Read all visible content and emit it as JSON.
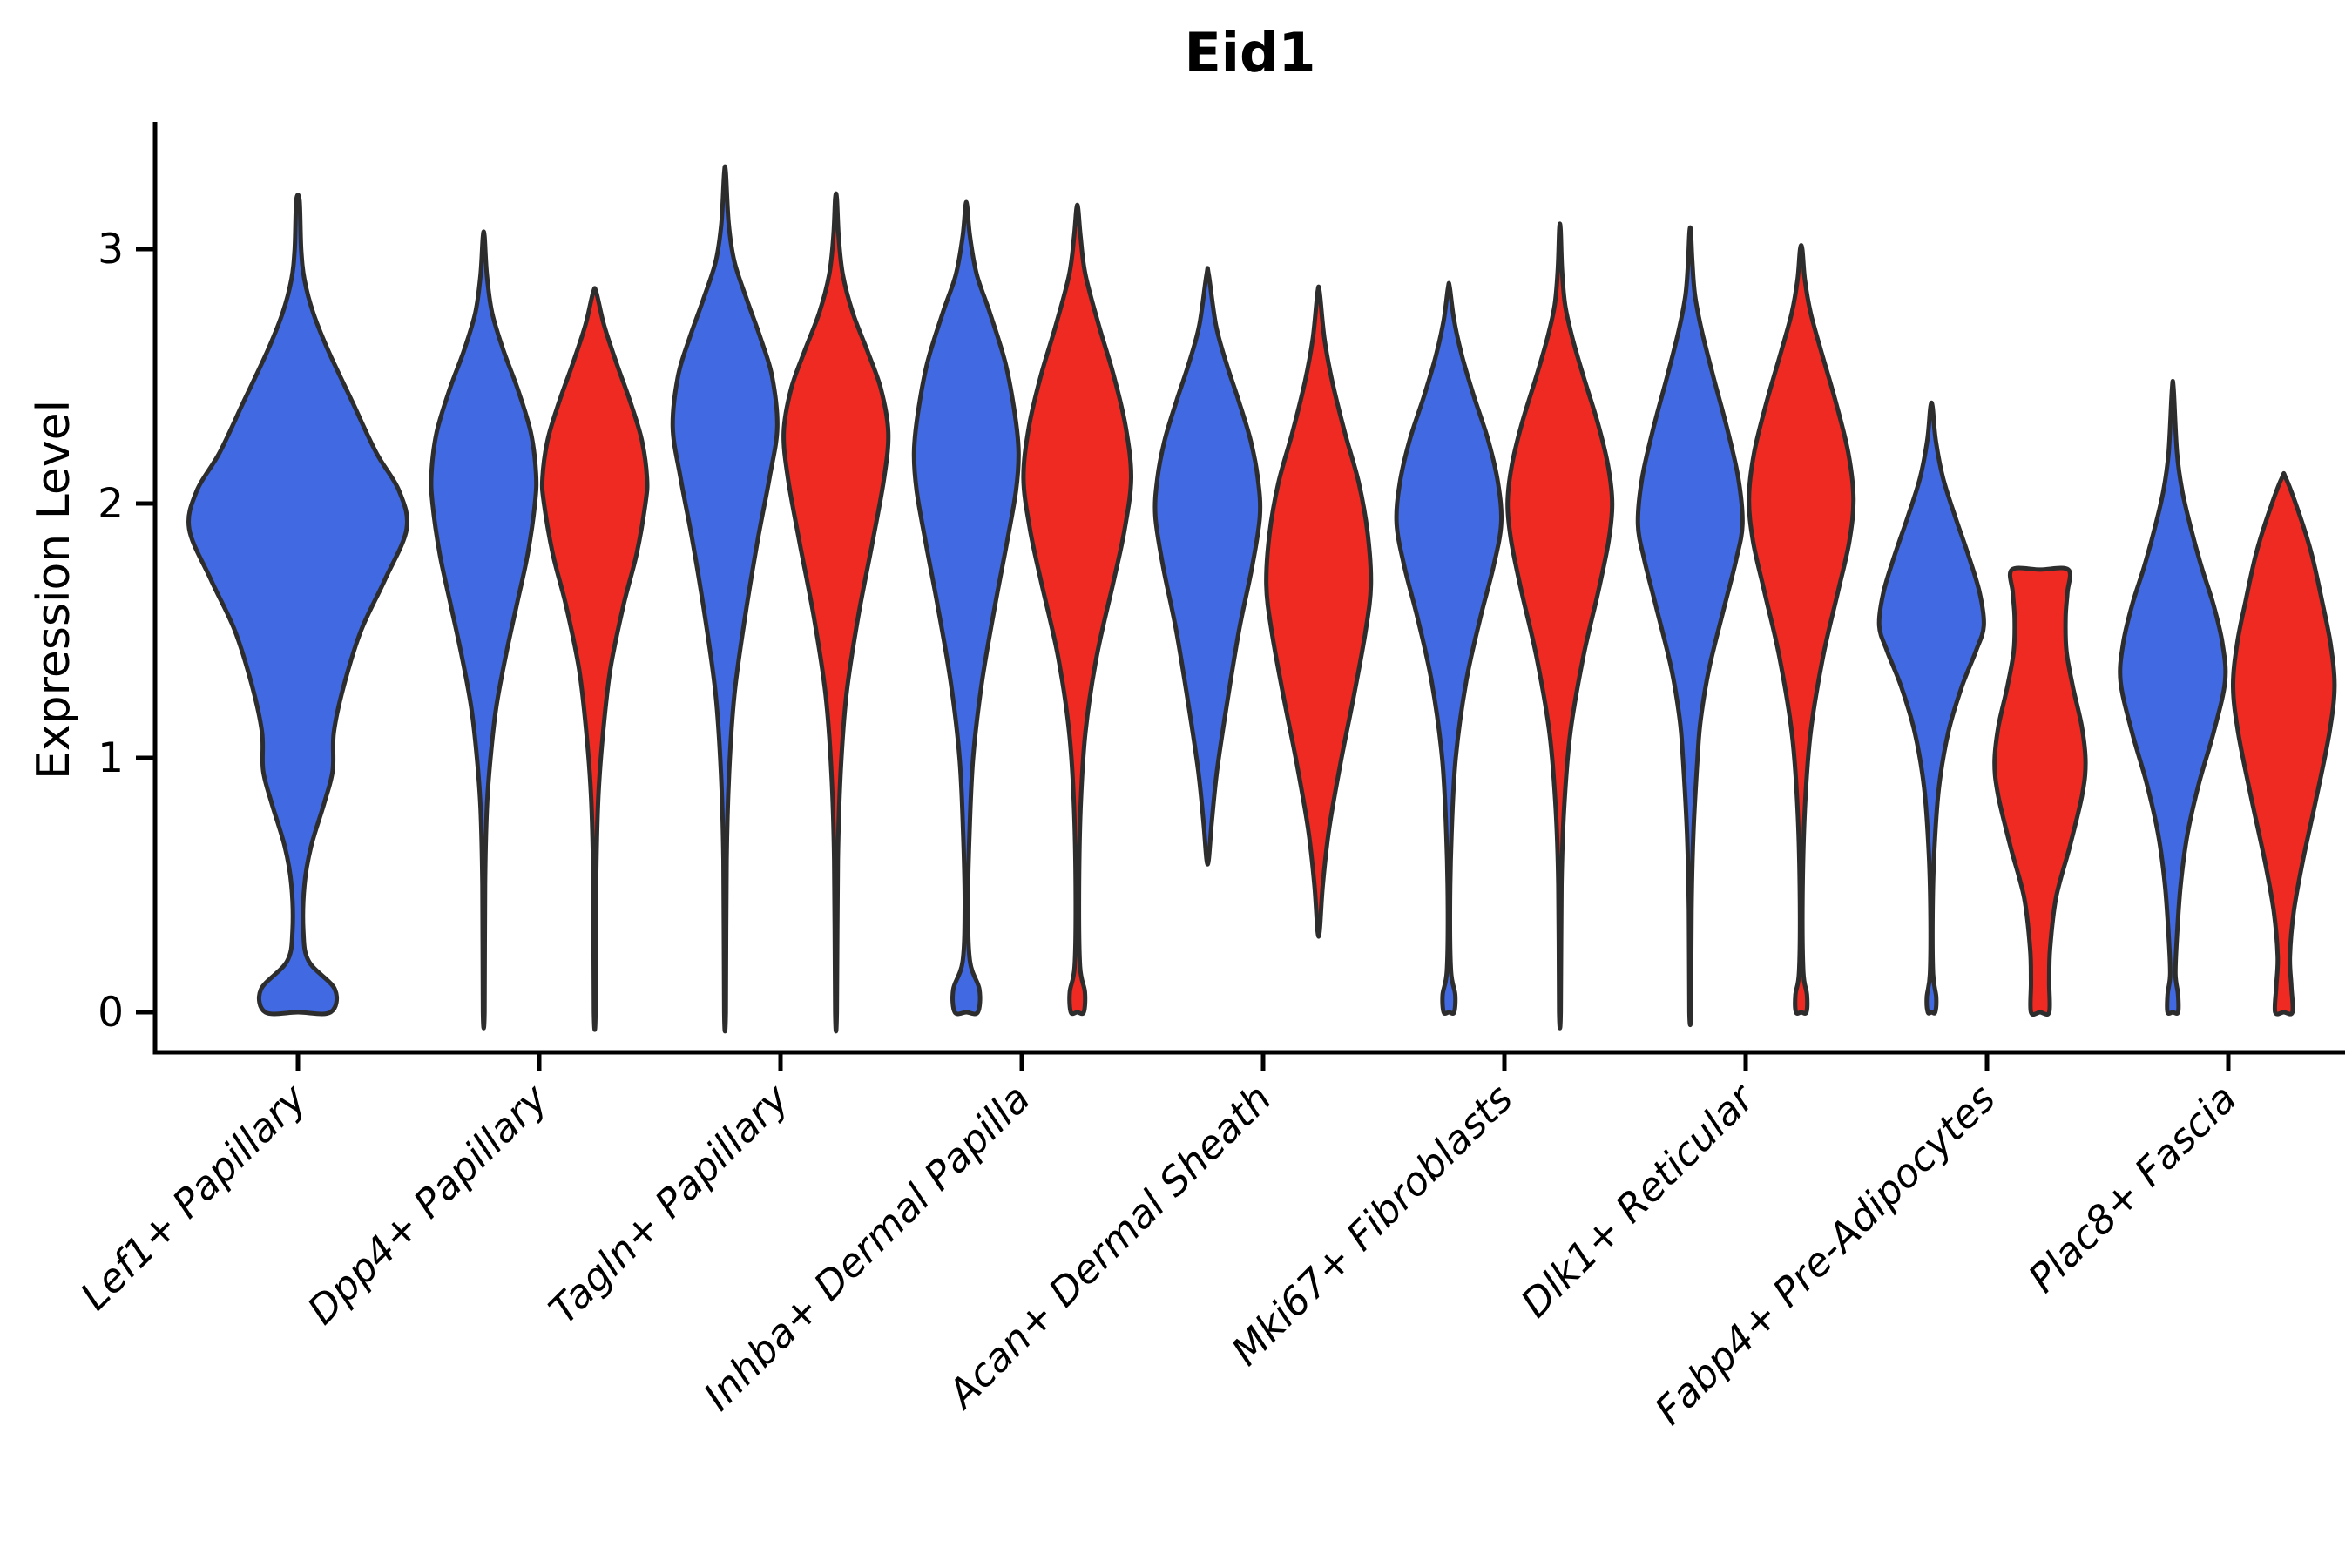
{
  "title": "Eid1",
  "y_axis": {
    "label": "Expression Level",
    "ticks": [
      0,
      1,
      2,
      3
    ],
    "ylim": [
      -0.16,
      3.5
    ]
  },
  "colors": {
    "blue": "#4169E1",
    "red": "#EE2A22",
    "outline": "#2D2D2D",
    "background": "#ffffff"
  },
  "chart_data": {
    "type": "violin",
    "title": "Eid1",
    "ylabel": "Expression Level",
    "yticks": [
      0,
      1,
      2,
      3
    ],
    "ylim": [
      -0.16,
      3.5
    ],
    "grid": false,
    "legend": "none",
    "categories": [
      "Lef1+ Papillary",
      "Dpp4+ Papillary",
      "Tagln+ Papillary",
      "Inhba+ Dermal Papilla",
      "Acan+ Dermal Sheath",
      "Mki67+ Fibroblasts",
      "Dlk1+ Reticular",
      "Fabp4+ Pre-Adipocytes",
      "Plac8+ Fascia"
    ],
    "groups": [
      {
        "name": "blue",
        "color": "#4169E1"
      },
      {
        "name": "red",
        "color": "#EE2A22"
      }
    ],
    "violins": [
      {
        "category_index": 0,
        "group": "blue",
        "offset": 0,
        "width_scale": 2.08,
        "profile": [
          [
            0,
            0.3
          ],
          [
            0.09,
            0.34
          ],
          [
            0.2,
            0.1
          ],
          [
            0.32,
            0.05
          ],
          [
            0.5,
            0.06
          ],
          [
            0.65,
            0.12
          ],
          [
            0.82,
            0.24
          ],
          [
            0.95,
            0.32
          ],
          [
            1.1,
            0.33
          ],
          [
            1.28,
            0.42
          ],
          [
            1.5,
            0.58
          ],
          [
            1.7,
            0.8
          ],
          [
            1.9,
            1.0
          ],
          [
            2.05,
            0.93
          ],
          [
            2.2,
            0.72
          ],
          [
            2.4,
            0.5
          ],
          [
            2.6,
            0.28
          ],
          [
            2.75,
            0.14
          ],
          [
            2.88,
            0.06
          ],
          [
            3.0,
            0.03
          ],
          [
            3.19,
            0.015
          ]
        ]
      },
      {
        "category_index": 1,
        "group": "blue",
        "offset": -0.23,
        "width_scale": 1.0,
        "profile": [
          [
            0,
            0.015
          ],
          [
            0.5,
            0.025
          ],
          [
            0.8,
            0.06
          ],
          [
            1.0,
            0.13
          ],
          [
            1.2,
            0.24
          ],
          [
            1.4,
            0.42
          ],
          [
            1.6,
            0.63
          ],
          [
            1.8,
            0.84
          ],
          [
            2.0,
            0.98
          ],
          [
            2.12,
            1.0
          ],
          [
            2.28,
            0.9
          ],
          [
            2.45,
            0.65
          ],
          [
            2.6,
            0.38
          ],
          [
            2.75,
            0.16
          ],
          [
            2.9,
            0.06
          ],
          [
            3.05,
            0.015
          ]
        ]
      },
      {
        "category_index": 1,
        "group": "red",
        "offset": 0.23,
        "width_scale": 1.0,
        "profile": [
          [
            0,
            0.015
          ],
          [
            0.55,
            0.03
          ],
          [
            0.85,
            0.07
          ],
          [
            1.1,
            0.16
          ],
          [
            1.35,
            0.3
          ],
          [
            1.6,
            0.55
          ],
          [
            1.8,
            0.8
          ],
          [
            2.0,
            0.97
          ],
          [
            2.1,
            1.0
          ],
          [
            2.25,
            0.9
          ],
          [
            2.4,
            0.68
          ],
          [
            2.55,
            0.42
          ],
          [
            2.7,
            0.18
          ],
          [
            2.83,
            0.03
          ]
        ]
      },
      {
        "category_index": 2,
        "group": "blue",
        "offset": -0.23,
        "width_scale": 1.0,
        "profile": [
          [
            0,
            0.015
          ],
          [
            0.6,
            0.03
          ],
          [
            0.95,
            0.08
          ],
          [
            1.25,
            0.18
          ],
          [
            1.55,
            0.38
          ],
          [
            1.85,
            0.62
          ],
          [
            2.1,
            0.85
          ],
          [
            2.3,
            1.0
          ],
          [
            2.5,
            0.9
          ],
          [
            2.65,
            0.68
          ],
          [
            2.8,
            0.42
          ],
          [
            2.95,
            0.18
          ],
          [
            3.1,
            0.07
          ],
          [
            3.3,
            0.015
          ]
        ]
      },
      {
        "category_index": 2,
        "group": "red",
        "offset": 0.23,
        "width_scale": 1.0,
        "profile": [
          [
            0,
            0.015
          ],
          [
            0.6,
            0.035
          ],
          [
            0.95,
            0.09
          ],
          [
            1.25,
            0.2
          ],
          [
            1.55,
            0.42
          ],
          [
            1.85,
            0.7
          ],
          [
            2.1,
            0.92
          ],
          [
            2.28,
            1.0
          ],
          [
            2.45,
            0.86
          ],
          [
            2.6,
            0.6
          ],
          [
            2.75,
            0.32
          ],
          [
            2.9,
            0.13
          ],
          [
            3.05,
            0.05
          ],
          [
            3.2,
            0.015
          ]
        ]
      },
      {
        "category_index": 3,
        "group": "blue",
        "offset": -0.23,
        "width_scale": 1.0,
        "profile": [
          [
            0,
            0.22
          ],
          [
            0.09,
            0.25
          ],
          [
            0.2,
            0.07
          ],
          [
            0.42,
            0.03
          ],
          [
            0.7,
            0.06
          ],
          [
            1.0,
            0.13
          ],
          [
            1.3,
            0.3
          ],
          [
            1.6,
            0.55
          ],
          [
            1.85,
            0.78
          ],
          [
            2.05,
            0.95
          ],
          [
            2.2,
            1.0
          ],
          [
            2.35,
            0.93
          ],
          [
            2.55,
            0.75
          ],
          [
            2.75,
            0.45
          ],
          [
            2.9,
            0.2
          ],
          [
            3.05,
            0.07
          ],
          [
            3.17,
            0.015
          ]
        ]
      },
      {
        "category_index": 3,
        "group": "red",
        "offset": 0.23,
        "width_scale": 1.03,
        "profile": [
          [
            0,
            0.12
          ],
          [
            0.08,
            0.14
          ],
          [
            0.18,
            0.05
          ],
          [
            0.45,
            0.03
          ],
          [
            0.8,
            0.06
          ],
          [
            1.1,
            0.15
          ],
          [
            1.4,
            0.36
          ],
          [
            1.7,
            0.68
          ],
          [
            1.9,
            0.88
          ],
          [
            2.1,
            1.0
          ],
          [
            2.3,
            0.9
          ],
          [
            2.5,
            0.68
          ],
          [
            2.7,
            0.4
          ],
          [
            2.9,
            0.15
          ],
          [
            3.05,
            0.06
          ],
          [
            3.16,
            0.015
          ]
        ]
      },
      {
        "category_index": 4,
        "group": "blue",
        "offset": -0.23,
        "width_scale": 1.0,
        "profile": [
          [
            0.6,
            0.02
          ],
          [
            0.75,
            0.08
          ],
          [
            0.95,
            0.18
          ],
          [
            1.2,
            0.36
          ],
          [
            1.5,
            0.6
          ],
          [
            1.75,
            0.85
          ],
          [
            1.95,
            1.0
          ],
          [
            2.1,
            0.96
          ],
          [
            2.25,
            0.82
          ],
          [
            2.4,
            0.6
          ],
          [
            2.55,
            0.36
          ],
          [
            2.7,
            0.16
          ],
          [
            2.9,
            0.02
          ]
        ]
      },
      {
        "category_index": 4,
        "group": "red",
        "offset": 0.23,
        "width_scale": 1.0,
        "profile": [
          [
            0.32,
            0.02
          ],
          [
            0.5,
            0.08
          ],
          [
            0.72,
            0.2
          ],
          [
            0.98,
            0.42
          ],
          [
            1.25,
            0.68
          ],
          [
            1.5,
            0.9
          ],
          [
            1.68,
            1.0
          ],
          [
            1.88,
            0.94
          ],
          [
            2.08,
            0.77
          ],
          [
            2.28,
            0.5
          ],
          [
            2.48,
            0.26
          ],
          [
            2.65,
            0.11
          ],
          [
            2.83,
            0.02
          ]
        ]
      },
      {
        "category_index": 5,
        "group": "blue",
        "offset": -0.23,
        "width_scale": 1.0,
        "profile": [
          [
            0,
            0.1
          ],
          [
            0.07,
            0.12
          ],
          [
            0.16,
            0.04
          ],
          [
            0.4,
            0.02
          ],
          [
            0.7,
            0.05
          ],
          [
            1.0,
            0.13
          ],
          [
            1.3,
            0.33
          ],
          [
            1.55,
            0.6
          ],
          [
            1.75,
            0.85
          ],
          [
            1.92,
            1.0
          ],
          [
            2.08,
            0.94
          ],
          [
            2.25,
            0.75
          ],
          [
            2.42,
            0.48
          ],
          [
            2.58,
            0.25
          ],
          [
            2.72,
            0.1
          ],
          [
            2.85,
            0.015
          ]
        ]
      },
      {
        "category_index": 5,
        "group": "red",
        "offset": 0.23,
        "width_scale": 1.0,
        "profile": [
          [
            0,
            0.015
          ],
          [
            0.5,
            0.03
          ],
          [
            0.8,
            0.08
          ],
          [
            1.1,
            0.2
          ],
          [
            1.4,
            0.45
          ],
          [
            1.65,
            0.73
          ],
          [
            1.85,
            0.93
          ],
          [
            2.0,
            1.0
          ],
          [
            2.15,
            0.92
          ],
          [
            2.32,
            0.72
          ],
          [
            2.5,
            0.45
          ],
          [
            2.65,
            0.24
          ],
          [
            2.78,
            0.1
          ],
          [
            2.92,
            0.04
          ],
          [
            3.08,
            0.012
          ]
        ]
      },
      {
        "category_index": 6,
        "group": "blue",
        "offset": -0.23,
        "width_scale": 1.0,
        "profile": [
          [
            0,
            0.015
          ],
          [
            0.4,
            0.025
          ],
          [
            0.7,
            0.06
          ],
          [
            1.0,
            0.14
          ],
          [
            1.15,
            0.2
          ],
          [
            1.35,
            0.36
          ],
          [
            1.6,
            0.66
          ],
          [
            1.78,
            0.88
          ],
          [
            1.92,
            1.0
          ],
          [
            2.1,
            0.92
          ],
          [
            2.3,
            0.7
          ],
          [
            2.5,
            0.44
          ],
          [
            2.68,
            0.22
          ],
          [
            2.82,
            0.09
          ],
          [
            2.95,
            0.04
          ],
          [
            3.07,
            0.012
          ]
        ]
      },
      {
        "category_index": 6,
        "group": "red",
        "offset": 0.23,
        "width_scale": 1.0,
        "profile": [
          [
            0,
            0.1
          ],
          [
            0.07,
            0.11
          ],
          [
            0.16,
            0.04
          ],
          [
            0.45,
            0.025
          ],
          [
            0.8,
            0.07
          ],
          [
            1.1,
            0.18
          ],
          [
            1.4,
            0.42
          ],
          [
            1.65,
            0.7
          ],
          [
            1.85,
            0.92
          ],
          [
            2.02,
            1.0
          ],
          [
            2.2,
            0.9
          ],
          [
            2.4,
            0.66
          ],
          [
            2.6,
            0.38
          ],
          [
            2.75,
            0.18
          ],
          [
            2.88,
            0.07
          ],
          [
            3.0,
            0.02
          ]
        ]
      },
      {
        "category_index": 7,
        "group": "blue",
        "offset": -0.23,
        "width_scale": 1.0,
        "profile": [
          [
            0,
            0.07
          ],
          [
            0.06,
            0.09
          ],
          [
            0.15,
            0.03
          ],
          [
            0.38,
            0.02
          ],
          [
            0.62,
            0.05
          ],
          [
            0.88,
            0.14
          ],
          [
            1.1,
            0.32
          ],
          [
            1.28,
            0.58
          ],
          [
            1.42,
            0.85
          ],
          [
            1.52,
            1.0
          ],
          [
            1.65,
            0.92
          ],
          [
            1.8,
            0.7
          ],
          [
            1.95,
            0.45
          ],
          [
            2.1,
            0.22
          ],
          [
            2.25,
            0.08
          ],
          [
            2.38,
            0.02
          ]
        ]
      },
      {
        "category_index": 7,
        "group": "red",
        "offset": 0.22,
        "width_scale": 0.87,
        "profile": [
          [
            0,
            0.2
          ],
          [
            0.12,
            0.2
          ],
          [
            0.25,
            0.22
          ],
          [
            0.45,
            0.35
          ],
          [
            0.65,
            0.65
          ],
          [
            0.85,
            0.92
          ],
          [
            0.98,
            1.0
          ],
          [
            1.12,
            0.92
          ],
          [
            1.28,
            0.72
          ],
          [
            1.42,
            0.58
          ],
          [
            1.55,
            0.56
          ],
          [
            1.65,
            0.6
          ],
          [
            1.74,
            0.62
          ]
        ]
      },
      {
        "category_index": 8,
        "group": "blue",
        "offset": -0.23,
        "width_scale": 1.0,
        "profile": [
          [
            0,
            0.1
          ],
          [
            0.07,
            0.1
          ],
          [
            0.15,
            0.05
          ],
          [
            0.3,
            0.08
          ],
          [
            0.5,
            0.15
          ],
          [
            0.7,
            0.28
          ],
          [
            0.9,
            0.5
          ],
          [
            1.1,
            0.78
          ],
          [
            1.3,
            1.0
          ],
          [
            1.45,
            0.95
          ],
          [
            1.6,
            0.78
          ],
          [
            1.75,
            0.55
          ],
          [
            1.9,
            0.35
          ],
          [
            2.05,
            0.18
          ],
          [
            2.2,
            0.08
          ],
          [
            2.45,
            0.015
          ]
        ]
      },
      {
        "category_index": 8,
        "group": "red",
        "offset": 0.23,
        "width_scale": 0.97,
        "profile": [
          [
            0,
            0.17
          ],
          [
            0.1,
            0.15
          ],
          [
            0.22,
            0.12
          ],
          [
            0.4,
            0.2
          ],
          [
            0.6,
            0.38
          ],
          [
            0.85,
            0.65
          ],
          [
            1.1,
            0.9
          ],
          [
            1.28,
            1.0
          ],
          [
            1.45,
            0.92
          ],
          [
            1.62,
            0.75
          ],
          [
            1.8,
            0.55
          ],
          [
            1.95,
            0.32
          ],
          [
            2.1,
            0.04
          ]
        ]
      }
    ]
  }
}
